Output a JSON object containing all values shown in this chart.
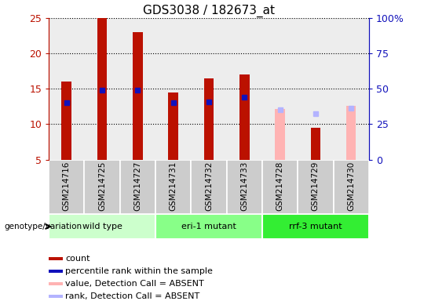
{
  "title": "GDS3038 / 182673_at",
  "samples": [
    "GSM214716",
    "GSM214725",
    "GSM214727",
    "GSM214731",
    "GSM214732",
    "GSM214733",
    "GSM214728",
    "GSM214729",
    "GSM214730"
  ],
  "count_values": [
    16.0,
    25.0,
    23.0,
    14.5,
    16.5,
    17.0,
    null,
    9.5,
    null
  ],
  "rank_values": [
    13.0,
    14.8,
    14.8,
    13.0,
    13.2,
    13.8,
    null,
    null,
    null
  ],
  "absent_count_top": [
    null,
    null,
    null,
    null,
    null,
    null,
    12.2,
    null,
    12.6
  ],
  "absent_rank_pos": [
    null,
    null,
    null,
    null,
    null,
    null,
    12.0,
    11.5,
    12.3
  ],
  "groups": [
    {
      "label": "wild type",
      "indices": [
        0,
        1,
        2
      ],
      "color": "#ccffcc"
    },
    {
      "label": "eri-1 mutant",
      "indices": [
        3,
        4,
        5
      ],
      "color": "#88ff88"
    },
    {
      "label": "rrf-3 mutant",
      "indices": [
        6,
        7,
        8
      ],
      "color": "#33ee33"
    }
  ],
  "ylim_min": 5,
  "ylim_max": 25,
  "yticks": [
    5,
    10,
    15,
    20,
    25
  ],
  "y2ticks": [
    0,
    25,
    50,
    75,
    100
  ],
  "y2labels": [
    "0",
    "25",
    "50",
    "75",
    "100%"
  ],
  "count_color": "#bb1100",
  "rank_color": "#1111bb",
  "absent_count_color": "#ffb3b3",
  "absent_rank_color": "#b3b3ff",
  "bg_color": "#cccccc",
  "plot_bg": "#ffffff",
  "legend_items": [
    {
      "color": "#bb1100",
      "marker": "s",
      "label": "count"
    },
    {
      "color": "#1111bb",
      "marker": "s",
      "label": "percentile rank within the sample"
    },
    {
      "color": "#ffb3b3",
      "marker": "s",
      "label": "value, Detection Call = ABSENT"
    },
    {
      "color": "#b3b3ff",
      "marker": "s",
      "label": "rank, Detection Call = ABSENT"
    }
  ],
  "bar_width": 0.28,
  "genotype_label": "genotype/variation"
}
